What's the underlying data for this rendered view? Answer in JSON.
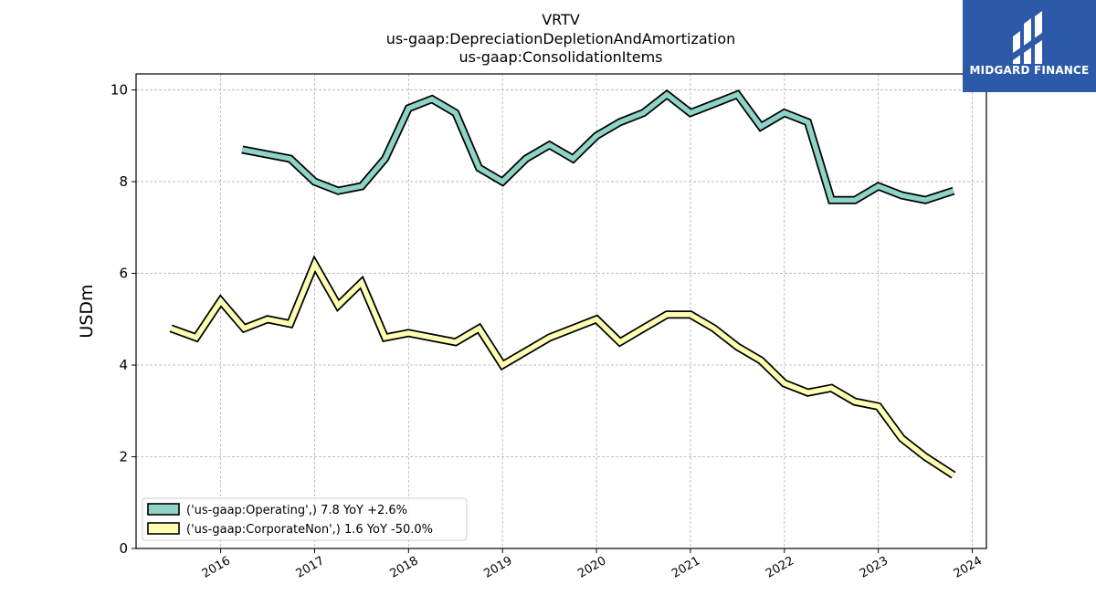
{
  "chart_data": {
    "type": "line",
    "title_lines": [
      "VRTV",
      "us-gaap:DepreciationDepletionAndAmortization",
      "us-gaap:ConsolidationItems"
    ],
    "ylabel": "USDm",
    "xlabel": "",
    "xlim": [
      2015.1,
      2024.15
    ],
    "ylim": [
      0,
      10.35
    ],
    "yticks": [
      0,
      2,
      4,
      6,
      8,
      10
    ],
    "xticks": [
      2016,
      2017,
      2018,
      2019,
      2020,
      2021,
      2022,
      2023,
      2024
    ],
    "grid": true,
    "legend_position": "lower-left",
    "series": [
      {
        "name": "('us-gaap:Operating',) 7.8 YoY +2.6%",
        "color": "#8dd3c7",
        "x": [
          2016.23,
          2016.74,
          2017.0,
          2017.25,
          2017.5,
          2017.75,
          2018.0,
          2018.25,
          2018.5,
          2018.75,
          2019.0,
          2019.25,
          2019.5,
          2019.75,
          2020.0,
          2020.25,
          2020.5,
          2020.75,
          2021.0,
          2021.25,
          2021.5,
          2021.75,
          2022.0,
          2022.25,
          2022.5,
          2022.75,
          2023.0,
          2023.25,
          2023.5,
          2023.8
        ],
        "y": [
          8.7,
          8.5,
          8.0,
          7.8,
          7.9,
          8.5,
          9.6,
          9.8,
          9.5,
          8.3,
          8.0,
          8.5,
          8.8,
          8.5,
          9.0,
          9.3,
          9.5,
          9.9,
          9.5,
          9.7,
          9.9,
          9.2,
          9.5,
          9.3,
          7.6,
          7.6,
          7.9,
          7.7,
          7.6,
          7.8
        ]
      },
      {
        "name": "('us-gaap:CorporateNon',) 1.6 YoY -50.0%",
        "color": "#ffffb3",
        "x": [
          2015.47,
          2015.74,
          2016.0,
          2016.25,
          2016.5,
          2016.74,
          2017.0,
          2017.25,
          2017.5,
          2017.75,
          2018.0,
          2018.25,
          2018.5,
          2018.75,
          2019.0,
          2019.25,
          2019.5,
          2019.75,
          2020.0,
          2020.25,
          2020.5,
          2020.75,
          2021.0,
          2021.25,
          2021.5,
          2021.75,
          2022.0,
          2022.25,
          2022.5,
          2022.75,
          2023.0,
          2023.25,
          2023.5,
          2023.8
        ],
        "y": [
          4.8,
          4.6,
          5.4,
          4.8,
          5.0,
          4.9,
          6.2,
          5.3,
          5.8,
          4.6,
          4.7,
          4.6,
          4.5,
          4.8,
          4.0,
          4.3,
          4.6,
          4.8,
          5.0,
          4.5,
          4.8,
          5.1,
          5.1,
          4.8,
          4.4,
          4.1,
          3.6,
          3.4,
          3.5,
          3.2,
          3.1,
          2.4,
          2.0,
          1.6
        ]
      }
    ]
  },
  "logo": {
    "text": "MIDGARD FINANCE",
    "bg_color": "#2c5aa8"
  }
}
